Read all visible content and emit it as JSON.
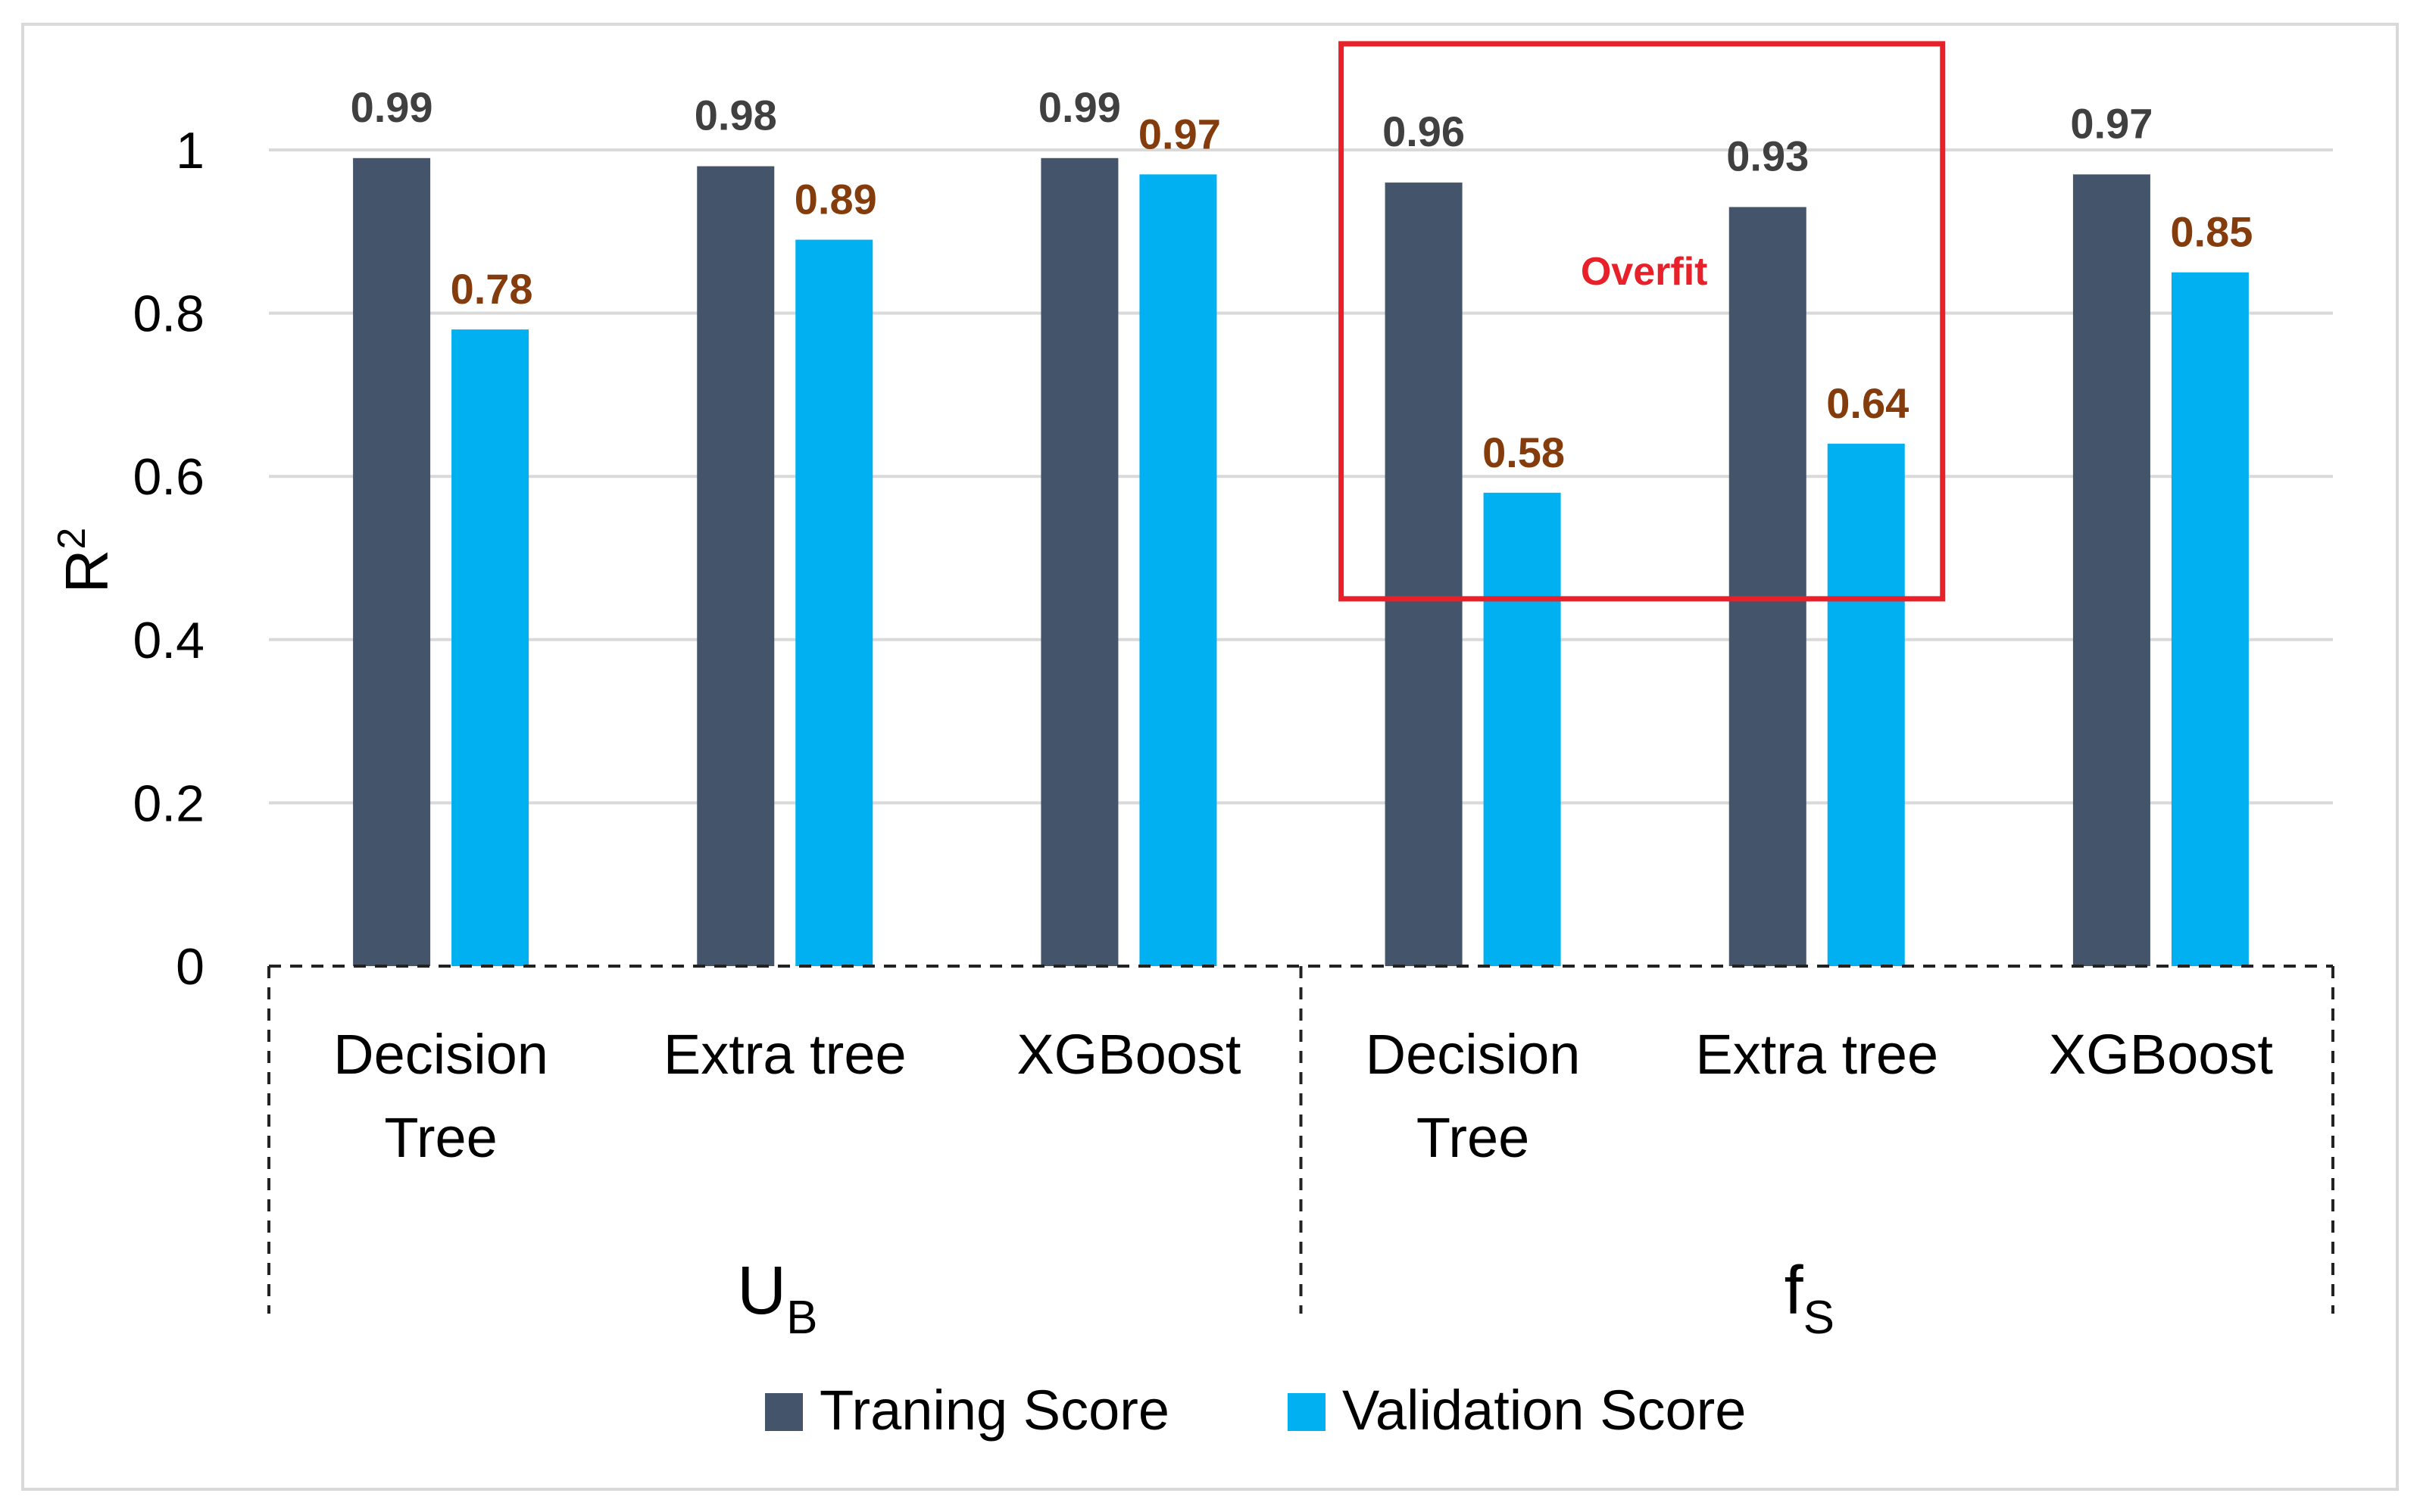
{
  "chart_data": {
    "type": "bar",
    "ylabel": "R",
    "ylabel_sup": "2",
    "ylim": [
      0,
      1
    ],
    "yticks": [
      "0",
      "0.2",
      "0.4",
      "0.6",
      "0.8",
      "1"
    ],
    "ytick_values": [
      0,
      0.2,
      0.4,
      0.6,
      0.8,
      1
    ],
    "grid": true,
    "legend": "bottom",
    "groups": [
      {
        "main": "U",
        "sub": "B",
        "categories": [
          [
            "Decision",
            "Tree"
          ],
          [
            "Extra tree"
          ],
          [
            "XGBoost"
          ]
        ]
      },
      {
        "main": "f",
        "sub": "S",
        "categories": [
          [
            "Decision",
            "Tree"
          ],
          [
            "Extra tree"
          ],
          [
            "XGBoost"
          ]
        ]
      }
    ],
    "series": [
      {
        "name": "Traning Score",
        "color": "#44546a",
        "label_color": "#404040",
        "values": [
          0.99,
          0.98,
          0.99,
          0.96,
          0.93,
          0.97
        ],
        "labels": [
          "0.99",
          "0.98",
          "0.99",
          "0.96",
          "0.93",
          "0.97"
        ]
      },
      {
        "name": "Validation Score",
        "color": "#00b0f0",
        "label_color": "#843c0c",
        "values": [
          0.78,
          0.89,
          0.97,
          0.58,
          0.64,
          0.85
        ],
        "labels": [
          "0.78",
          "0.89",
          "0.97",
          "0.58",
          "0.64",
          "0.85"
        ]
      }
    ],
    "annotation": {
      "text": "Overfit",
      "color": "#e8202a",
      "covers_categories": [
        3,
        4
      ],
      "y_range": [
        0.45,
        1.13
      ]
    }
  }
}
